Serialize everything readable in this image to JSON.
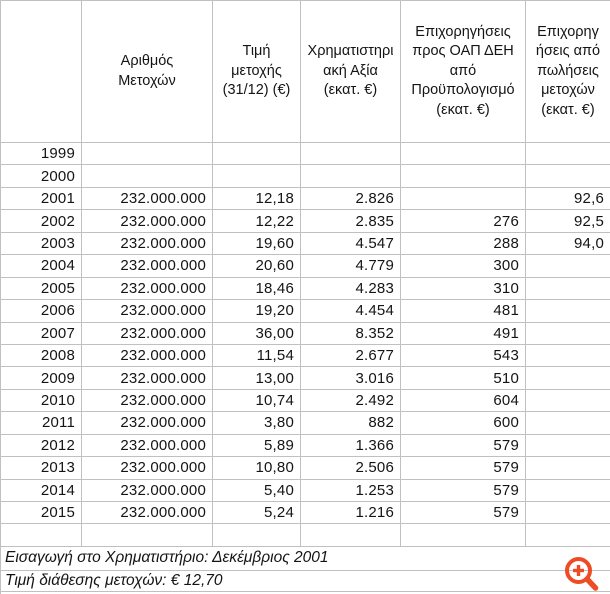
{
  "table": {
    "columns": [
      {
        "key": "year",
        "label": ""
      },
      {
        "key": "shares",
        "label": "Αριθμός\nΜετοχών"
      },
      {
        "key": "price",
        "label": "Τιμή\nμετοχής\n(31/12) (€)"
      },
      {
        "key": "cap",
        "label": "Χρηματιστηρι\nακή Αξία\n(εκατ. €)"
      },
      {
        "key": "subsidy",
        "label": "Επιχορηγήσεις\nπρος ΟΑΠ ΔΕΗ\nαπό\nΠροϋπολογισμό\n(εκατ. €)"
      },
      {
        "key": "sales",
        "label": "Επιχορηγ\nήσεις από\nπωλήσεις\nμετοχών\n(εκατ. €)"
      }
    ],
    "rows": [
      [
        "1999",
        "",
        "",
        "",
        "",
        ""
      ],
      [
        "2000",
        "",
        "",
        "",
        "",
        ""
      ],
      [
        "2001",
        "232.000.000",
        "12,18",
        "2.826",
        "",
        "92,6"
      ],
      [
        "2002",
        "232.000.000",
        "12,22",
        "2.835",
        "276",
        "92,5"
      ],
      [
        "2003",
        "232.000.000",
        "19,60",
        "4.547",
        "288",
        "94,0"
      ],
      [
        "2004",
        "232.000.000",
        "20,60",
        "4.779",
        "300",
        ""
      ],
      [
        "2005",
        "232.000.000",
        "18,46",
        "4.283",
        "310",
        ""
      ],
      [
        "2006",
        "232.000.000",
        "19,20",
        "4.454",
        "481",
        ""
      ],
      [
        "2007",
        "232.000.000",
        "36,00",
        "8.352",
        "491",
        ""
      ],
      [
        "2008",
        "232.000.000",
        "11,54",
        "2.677",
        "543",
        ""
      ],
      [
        "2009",
        "232.000.000",
        "13,00",
        "3.016",
        "510",
        ""
      ],
      [
        "2010",
        "232.000.000",
        "10,74",
        "2.492",
        "604",
        ""
      ],
      [
        "2011",
        "232.000.000",
        "3,80",
        "882",
        "600",
        ""
      ],
      [
        "2012",
        "232.000.000",
        "5,89",
        "1.366",
        "579",
        ""
      ],
      [
        "2013",
        "232.000.000",
        "10,80",
        "2.506",
        "579",
        ""
      ],
      [
        "2014",
        "232.000.000",
        "5,40",
        "1.253",
        "579",
        ""
      ],
      [
        "2015",
        "232.000.000",
        "5,24",
        "1.216",
        "579",
        ""
      ],
      [
        "",
        "",
        "",
        "",
        "",
        ""
      ]
    ]
  },
  "footer": {
    "note1": "Εισαγωγή στο Χρηματιστήριο: Δεκέμβριος 2001",
    "note2": "Τιμή διάθεσης μετοχών: € 12,70"
  },
  "icons": {
    "zoom_in": {
      "name": "zoom-in-icon",
      "color": "#ee4c24"
    }
  },
  "colors": {
    "gridline": "#c0c0c0",
    "text": "#141414",
    "background": "#ffffff"
  }
}
